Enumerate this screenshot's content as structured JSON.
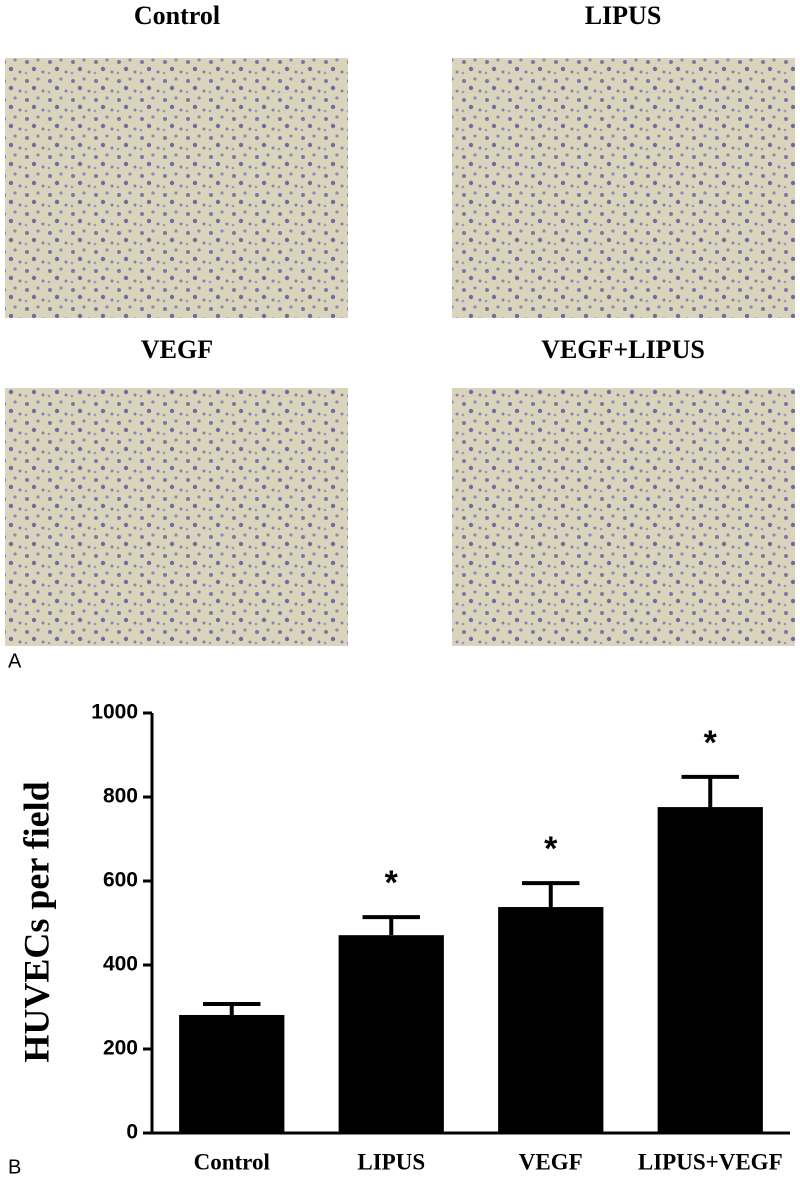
{
  "panel_a": {
    "label": "A",
    "images": [
      {
        "title": "Control"
      },
      {
        "title": "LIPUS"
      },
      {
        "title": "VEGF"
      },
      {
        "title": "VEGF+LIPUS"
      }
    ]
  },
  "panel_b": {
    "label": "B"
  },
  "chart_data": {
    "type": "bar",
    "ylabel": "HUVECs per field",
    "categories": [
      "Control",
      "LIPUS",
      "VEGF",
      "LIPUS+VEGF"
    ],
    "values": [
      281,
      471,
      538,
      776
    ],
    "errors": [
      26,
      43,
      57,
      72
    ],
    "significance_labels": [
      null,
      "*",
      "*",
      "*"
    ],
    "color": "#000000",
    "ylim": [
      0,
      1000
    ],
    "yticks": [
      0,
      200,
      400,
      600,
      800,
      1000
    ],
    "grid": false
  }
}
